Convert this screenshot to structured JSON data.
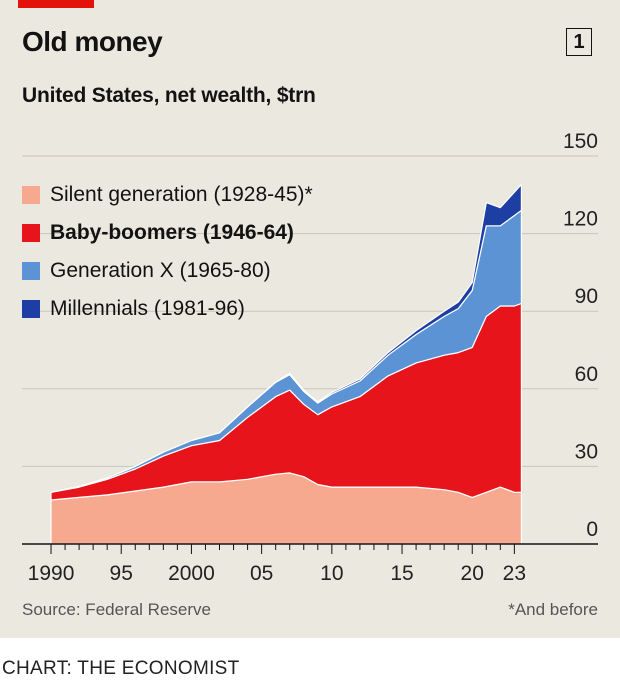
{
  "header": {
    "title": "Old money",
    "chart_number": "1",
    "subtitle": "United States, net wealth, $trn"
  },
  "footer": {
    "source": "Source: Federal Reserve",
    "footnote": "*And before",
    "credit": "CHART: THE ECONOMIST"
  },
  "colors": {
    "background": "#ebe8e0",
    "accent": "#e3120b",
    "silent": "#f6a98f",
    "boomers": "#e8141b",
    "genx": "#5b93d5",
    "millennials": "#1d3fa3"
  },
  "chart_data": {
    "type": "area",
    "stacked": true,
    "title": "Old money",
    "subtitle": "United States, net wealth, $trn",
    "xlabel": "",
    "ylabel": "",
    "xlim": [
      1989.5,
      2023.9
    ],
    "ylim": [
      0,
      150
    ],
    "y_ticks": [
      0,
      30,
      60,
      90,
      120,
      150
    ],
    "x_ticks": [
      1990,
      1995,
      2000,
      2005,
      2010,
      2015,
      2020,
      2023
    ],
    "x_tick_labels": [
      "1990",
      "95",
      "2000",
      "05",
      "10",
      "15",
      "20",
      "23"
    ],
    "grid": true,
    "y_axis_side": "right",
    "legend_position": "top-left",
    "x": [
      1990,
      1992,
      1994,
      1996,
      1998,
      2000,
      2002,
      2004,
      2006,
      2007,
      2008,
      2009,
      2010,
      2012,
      2014,
      2016,
      2018,
      2019,
      2020,
      2021,
      2022,
      2023,
      2023.5
    ],
    "series": [
      {
        "name": "Silent generation (1928-45)*",
        "color": "#f6a98f",
        "values": [
          17,
          18,
          19,
          20.5,
          22,
          24,
          24,
          25,
          27,
          27.5,
          26,
          23,
          22,
          22,
          22,
          22,
          21,
          20,
          18,
          20,
          22,
          20,
          20
        ]
      },
      {
        "name": "Baby-boomers (1946-64)",
        "color": "#e8141b",
        "values": [
          3,
          4,
          6,
          8.5,
          12,
          14,
          16,
          24,
          30,
          32,
          28,
          27,
          31,
          35,
          43,
          48,
          52,
          54,
          58,
          68,
          70,
          72,
          73
        ]
      },
      {
        "name": "Generation X (1965-80)",
        "color": "#5b93d5",
        "values": [
          0,
          0.3,
          0.5,
          1,
          1.5,
          2,
          3,
          4,
          5.5,
          6,
          5,
          4.5,
          5,
          6,
          8,
          11,
          15,
          17,
          22,
          35,
          31,
          35,
          36
        ]
      },
      {
        "name": "Millennials (1981-96)",
        "color": "#1d3fa3",
        "values": [
          0,
          0,
          0,
          0,
          0,
          0,
          0,
          0,
          0.3,
          0.5,
          0.5,
          0.5,
          0.6,
          0.8,
          1,
          1.5,
          2,
          2.5,
          3,
          9,
          7,
          9,
          10
        ]
      }
    ]
  }
}
